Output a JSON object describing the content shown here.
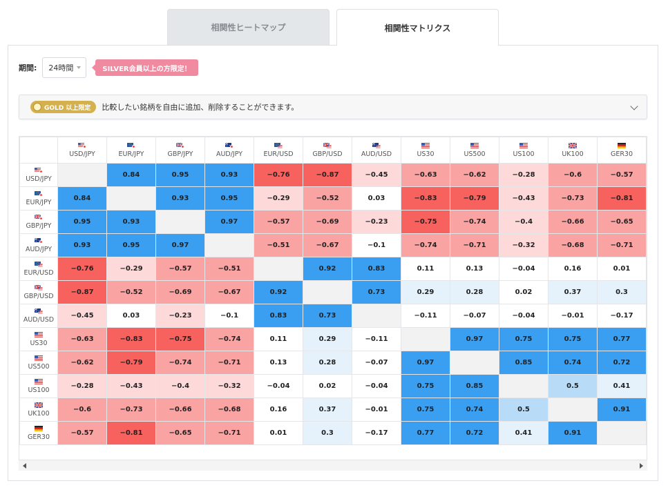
{
  "tabs": [
    {
      "label": "相関性ヒートマップ",
      "active": false
    },
    {
      "label": "相関性マトリクス",
      "active": true
    }
  ],
  "period": {
    "label": "期間:",
    "value": "24時間",
    "notice": "SILVER会員以上の方限定！"
  },
  "gold_bar": {
    "badge": "GOLD 以上限定",
    "text": "比較したい銘柄を自由に追加、削除することができます。"
  },
  "colors": {
    "positive_strong": "#3a9ff0",
    "positive_light": "#b8dcf7",
    "positive_faint": "#e5f2fc",
    "negative_strong": "#f7625f",
    "negative_mid": "#f9a3a3",
    "negative_light": "#fdd9d9",
    "neutral": "#ffffff",
    "diagonal": "#f2f2f2"
  },
  "matrix": {
    "symbols": [
      {
        "label": "USD/JPY",
        "flag": "usjp"
      },
      {
        "label": "EUR/JPY",
        "flag": "eujp"
      },
      {
        "label": "GBP/JPY",
        "flag": "ukjp"
      },
      {
        "label": "AUD/JPY",
        "flag": "aujp"
      },
      {
        "label": "EUR/USD",
        "flag": "euus"
      },
      {
        "label": "GBP/USD",
        "flag": "ukus"
      },
      {
        "label": "AUD/USD",
        "flag": "auus"
      },
      {
        "label": "US30",
        "flag": "us"
      },
      {
        "label": "US500",
        "flag": "us"
      },
      {
        "label": "US100",
        "flag": "us"
      },
      {
        "label": "UK100",
        "flag": "uk"
      },
      {
        "label": "GER30",
        "flag": "de"
      }
    ],
    "values": [
      [
        null,
        "0.84",
        "0.95",
        "0.93",
        "−0.76",
        "−0.87",
        "−0.45",
        "−0.63",
        "−0.62",
        "−0.28",
        "−0.6",
        "−0.57"
      ],
      [
        "0.84",
        null,
        "0.93",
        "0.95",
        "−0.29",
        "−0.52",
        "0.03",
        "−0.83",
        "−0.79",
        "−0.43",
        "−0.73",
        "−0.81"
      ],
      [
        "0.95",
        "0.93",
        null,
        "0.97",
        "−0.57",
        "−0.69",
        "−0.23",
        "−0.75",
        "−0.74",
        "−0.4",
        "−0.66",
        "−0.65"
      ],
      [
        "0.93",
        "0.95",
        "0.97",
        null,
        "−0.51",
        "−0.67",
        "−0.1",
        "−0.74",
        "−0.71",
        "−0.32",
        "−0.68",
        "−0.71"
      ],
      [
        "−0.76",
        "−0.29",
        "−0.57",
        "−0.51",
        null,
        "0.92",
        "0.83",
        "0.11",
        "0.13",
        "−0.04",
        "0.16",
        "0.01"
      ],
      [
        "−0.87",
        "−0.52",
        "−0.69",
        "−0.67",
        "0.92",
        null,
        "0.73",
        "0.29",
        "0.28",
        "0.02",
        "0.37",
        "0.3"
      ],
      [
        "−0.45",
        "0.03",
        "−0.23",
        "−0.1",
        "0.83",
        "0.73",
        null,
        "−0.11",
        "−0.07",
        "−0.04",
        "−0.01",
        "−0.17"
      ],
      [
        "−0.63",
        "−0.83",
        "−0.75",
        "−0.74",
        "0.11",
        "0.29",
        "−0.11",
        null,
        "0.97",
        "0.75",
        "0.75",
        "0.77"
      ],
      [
        "−0.62",
        "−0.79",
        "−0.74",
        "−0.71",
        "0.13",
        "0.28",
        "−0.07",
        "0.97",
        null,
        "0.85",
        "0.74",
        "0.72"
      ],
      [
        "−0.28",
        "−0.43",
        "−0.4",
        "−0.32",
        "−0.04",
        "0.02",
        "−0.04",
        "0.75",
        "0.85",
        null,
        "0.5",
        "0.41"
      ],
      [
        "−0.6",
        "−0.73",
        "−0.66",
        "−0.68",
        "0.16",
        "0.37",
        "−0.01",
        "0.75",
        "0.74",
        "0.5",
        null,
        "0.91"
      ],
      [
        "−0.57",
        "−0.81",
        "−0.65",
        "−0.71",
        "0.01",
        "0.3",
        "−0.17",
        "0.77",
        "0.72",
        "0.41",
        "0.91",
        null
      ]
    ]
  }
}
